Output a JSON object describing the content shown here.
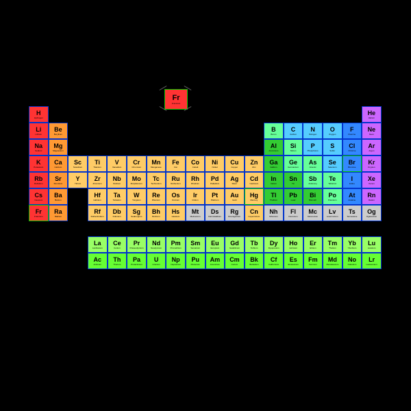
{
  "colors": {
    "alkali": "#ff3333",
    "alkaline": "#ff9933",
    "transition": "#ffcc66",
    "posttrans": "#33cc33",
    "metalloid": "#66ff99",
    "nonmetal": "#55ccff",
    "halogen": "#3388ff",
    "noble": "#cc66ff",
    "lanthanide": "#99ff66",
    "actinide": "#66ff33",
    "unknown": "#cccccc",
    "border": "#0033cc",
    "borderGreen": "#00cc00"
  },
  "legend": {
    "sym": "Fr",
    "name": "Francium"
  },
  "elements": [
    [
      {
        "s": "H",
        "n": "Hydrogen",
        "c": "alkali",
        "b": "border"
      },
      null,
      null,
      null,
      null,
      null,
      null,
      null,
      null,
      null,
      null,
      null,
      null,
      null,
      null,
      null,
      null,
      {
        "s": "He",
        "n": "Helium",
        "c": "noble",
        "b": "border"
      }
    ],
    [
      {
        "s": "Li",
        "n": "Lithium",
        "c": "alkali",
        "b": "border"
      },
      {
        "s": "Be",
        "n": "Beryllium",
        "c": "alkaline",
        "b": "border"
      },
      null,
      null,
      null,
      null,
      null,
      null,
      null,
      null,
      null,
      null,
      {
        "s": "B",
        "n": "Boron",
        "c": "metalloid",
        "b": "border"
      },
      {
        "s": "C",
        "n": "Carbon",
        "c": "nonmetal",
        "b": "border"
      },
      {
        "s": "N",
        "n": "Nitrogen",
        "c": "nonmetal",
        "b": "border"
      },
      {
        "s": "O",
        "n": "Oxygen",
        "c": "nonmetal",
        "b": "border"
      },
      {
        "s": "F",
        "n": "Fluorine",
        "c": "halogen",
        "b": "border"
      },
      {
        "s": "Ne",
        "n": "Neon",
        "c": "noble",
        "b": "border"
      }
    ],
    [
      {
        "s": "Na",
        "n": "Sodium",
        "c": "alkali",
        "b": "border"
      },
      {
        "s": "Mg",
        "n": "Magnesium",
        "c": "alkaline",
        "b": "border"
      },
      null,
      null,
      null,
      null,
      null,
      null,
      null,
      null,
      null,
      null,
      {
        "s": "Al",
        "n": "Aluminium",
        "c": "posttrans",
        "b": "border"
      },
      {
        "s": "Si",
        "n": "Silicon",
        "c": "metalloid",
        "b": "border"
      },
      {
        "s": "P",
        "n": "Phosphorus",
        "c": "nonmetal",
        "b": "border"
      },
      {
        "s": "S",
        "n": "Sulfur",
        "c": "nonmetal",
        "b": "border"
      },
      {
        "s": "Cl",
        "n": "Chlorine",
        "c": "halogen",
        "b": "border"
      },
      {
        "s": "Ar",
        "n": "Argon",
        "c": "noble",
        "b": "border"
      }
    ],
    [
      {
        "s": "K",
        "n": "Potassium",
        "c": "alkali",
        "b": "border"
      },
      {
        "s": "Ca",
        "n": "Calcium",
        "c": "alkaline",
        "b": "border"
      },
      {
        "s": "Sc",
        "n": "Scandium",
        "c": "transition",
        "b": "border"
      },
      {
        "s": "Ti",
        "n": "Titanium",
        "c": "transition",
        "b": "border"
      },
      {
        "s": "V",
        "n": "Vanadium",
        "c": "transition",
        "b": "border"
      },
      {
        "s": "Cr",
        "n": "Chromium",
        "c": "transition",
        "b": "border"
      },
      {
        "s": "Mn",
        "n": "Manganese",
        "c": "transition",
        "b": "border"
      },
      {
        "s": "Fe",
        "n": "Iron",
        "c": "transition",
        "b": "border"
      },
      {
        "s": "Co",
        "n": "Cobalt",
        "c": "transition",
        "b": "border"
      },
      {
        "s": "Ni",
        "n": "Nickel",
        "c": "transition",
        "b": "border"
      },
      {
        "s": "Cu",
        "n": "Copper",
        "c": "transition",
        "b": "border"
      },
      {
        "s": "Zn",
        "n": "Zinc",
        "c": "transition",
        "b": "border"
      },
      {
        "s": "Ga",
        "n": "Gallium",
        "c": "posttrans",
        "b": "border"
      },
      {
        "s": "Ge",
        "n": "Germanium",
        "c": "metalloid",
        "b": "border"
      },
      {
        "s": "As",
        "n": "Arsenic",
        "c": "metalloid",
        "b": "border"
      },
      {
        "s": "Se",
        "n": "Selenium",
        "c": "nonmetal",
        "b": "border"
      },
      {
        "s": "Br",
        "n": "Bromine",
        "c": "halogen",
        "b": "borderGreen"
      },
      {
        "s": "Kr",
        "n": "Krypton",
        "c": "noble",
        "b": "border"
      }
    ],
    [
      {
        "s": "Rb",
        "n": "Rubidium",
        "c": "alkali",
        "b": "border"
      },
      {
        "s": "Sr",
        "n": "Strontium",
        "c": "alkaline",
        "b": "border"
      },
      {
        "s": "Y",
        "n": "Yttrium",
        "c": "transition",
        "b": "border"
      },
      {
        "s": "Zr",
        "n": "Zirconium",
        "c": "transition",
        "b": "border"
      },
      {
        "s": "Nb",
        "n": "Niobium",
        "c": "transition",
        "b": "border"
      },
      {
        "s": "Mo",
        "n": "Molybdenum",
        "c": "transition",
        "b": "border"
      },
      {
        "s": "Tc",
        "n": "Technetium",
        "c": "transition",
        "b": "border"
      },
      {
        "s": "Ru",
        "n": "Ruthenium",
        "c": "transition",
        "b": "border"
      },
      {
        "s": "Rh",
        "n": "Rhodium",
        "c": "transition",
        "b": "border"
      },
      {
        "s": "Pd",
        "n": "Palladium",
        "c": "transition",
        "b": "border"
      },
      {
        "s": "Ag",
        "n": "Silver",
        "c": "transition",
        "b": "border"
      },
      {
        "s": "Cd",
        "n": "Cadmium",
        "c": "transition",
        "b": "border"
      },
      {
        "s": "In",
        "n": "Indium",
        "c": "posttrans",
        "b": "border"
      },
      {
        "s": "Sn",
        "n": "Tin",
        "c": "posttrans",
        "b": "border"
      },
      {
        "s": "Sb",
        "n": "Antimony",
        "c": "metalloid",
        "b": "border"
      },
      {
        "s": "Te",
        "n": "Tellurium",
        "c": "metalloid",
        "b": "border"
      },
      {
        "s": "I",
        "n": "Iodine",
        "c": "halogen",
        "b": "border"
      },
      {
        "s": "Xe",
        "n": "Xenon",
        "c": "noble",
        "b": "border"
      }
    ],
    [
      {
        "s": "Cs",
        "n": "Caesium",
        "c": "alkali",
        "b": "border"
      },
      {
        "s": "Ba",
        "n": "Barium",
        "c": "alkaline",
        "b": "border"
      },
      null,
      {
        "s": "Hf",
        "n": "Hafnium",
        "c": "transition",
        "b": "border"
      },
      {
        "s": "Ta",
        "n": "Tantalum",
        "c": "transition",
        "b": "border"
      },
      {
        "s": "W",
        "n": "Tungsten",
        "c": "transition",
        "b": "border"
      },
      {
        "s": "Re",
        "n": "Rhenium",
        "c": "transition",
        "b": "border"
      },
      {
        "s": "Os",
        "n": "Osmium",
        "c": "transition",
        "b": "border"
      },
      {
        "s": "Ir",
        "n": "Iridium",
        "c": "transition",
        "b": "border"
      },
      {
        "s": "Pt",
        "n": "Platinum",
        "c": "transition",
        "b": "border"
      },
      {
        "s": "Au",
        "n": "Gold",
        "c": "transition",
        "b": "border"
      },
      {
        "s": "Hg",
        "n": "Mercury",
        "c": "transition",
        "b": "borderGreen"
      },
      {
        "s": "Tl",
        "n": "Thallium",
        "c": "posttrans",
        "b": "border"
      },
      {
        "s": "Pb",
        "n": "Lead",
        "c": "posttrans",
        "b": "border"
      },
      {
        "s": "Bi",
        "n": "Bismuth",
        "c": "posttrans",
        "b": "border"
      },
      {
        "s": "Po",
        "n": "Polonium",
        "c": "metalloid",
        "b": "border"
      },
      {
        "s": "At",
        "n": "Astatine",
        "c": "halogen",
        "b": "border"
      },
      {
        "s": "Rn",
        "n": "Radon",
        "c": "noble",
        "b": "border"
      }
    ],
    [
      {
        "s": "Fr",
        "n": "Francium",
        "c": "alkali",
        "b": "borderGreen"
      },
      {
        "s": "Ra",
        "n": "Radium",
        "c": "alkaline",
        "b": "border"
      },
      null,
      {
        "s": "Rf",
        "n": "Rutherfordium",
        "c": "transition",
        "b": "border"
      },
      {
        "s": "Db",
        "n": "Dubnium",
        "c": "transition",
        "b": "border"
      },
      {
        "s": "Sg",
        "n": "Seaborgium",
        "c": "transition",
        "b": "border"
      },
      {
        "s": "Bh",
        "n": "Bohrium",
        "c": "transition",
        "b": "border"
      },
      {
        "s": "Hs",
        "n": "Hassium",
        "c": "transition",
        "b": "border"
      },
      {
        "s": "Mt",
        "n": "Meitnerium",
        "c": "unknown",
        "b": "border"
      },
      {
        "s": "Ds",
        "n": "Darmstadtium",
        "c": "unknown",
        "b": "border"
      },
      {
        "s": "Rg",
        "n": "Roentgenium",
        "c": "unknown",
        "b": "border"
      },
      {
        "s": "Cn",
        "n": "Copernicium",
        "c": "transition",
        "b": "border"
      },
      {
        "s": "Nh",
        "n": "Nihonium",
        "c": "unknown",
        "b": "border"
      },
      {
        "s": "Fl",
        "n": "Flerovium",
        "c": "unknown",
        "b": "border"
      },
      {
        "s": "Mc",
        "n": "Moscovium",
        "c": "unknown",
        "b": "border"
      },
      {
        "s": "Lv",
        "n": "Livermorium",
        "c": "unknown",
        "b": "border"
      },
      {
        "s": "Ts",
        "n": "Tennessine",
        "c": "unknown",
        "b": "border"
      },
      {
        "s": "Og",
        "n": "Oganesson",
        "c": "unknown",
        "b": "border"
      }
    ]
  ],
  "lanthanides": [
    [
      {
        "s": "La",
        "n": "Lanthanum",
        "c": "lanthanide",
        "b": "border"
      },
      {
        "s": "Ce",
        "n": "Cerium",
        "c": "lanthanide",
        "b": "border"
      },
      {
        "s": "Pr",
        "n": "Praseodymium",
        "c": "lanthanide",
        "b": "border"
      },
      {
        "s": "Nd",
        "n": "Neodymium",
        "c": "lanthanide",
        "b": "border"
      },
      {
        "s": "Pm",
        "n": "Promethium",
        "c": "lanthanide",
        "b": "border"
      },
      {
        "s": "Sm",
        "n": "Samarium",
        "c": "lanthanide",
        "b": "border"
      },
      {
        "s": "Eu",
        "n": "Europium",
        "c": "lanthanide",
        "b": "border"
      },
      {
        "s": "Gd",
        "n": "Gadolinium",
        "c": "lanthanide",
        "b": "border"
      },
      {
        "s": "Tb",
        "n": "Terbium",
        "c": "lanthanide",
        "b": "border"
      },
      {
        "s": "Dy",
        "n": "Dysprosium",
        "c": "lanthanide",
        "b": "border"
      },
      {
        "s": "Ho",
        "n": "Holmium",
        "c": "lanthanide",
        "b": "border"
      },
      {
        "s": "Er",
        "n": "Erbium",
        "c": "lanthanide",
        "b": "border"
      },
      {
        "s": "Tm",
        "n": "Thulium",
        "c": "lanthanide",
        "b": "border"
      },
      {
        "s": "Yb",
        "n": "Ytterbium",
        "c": "lanthanide",
        "b": "border"
      },
      {
        "s": "Lu",
        "n": "Lutetium",
        "c": "lanthanide",
        "b": "border"
      }
    ],
    [
      {
        "s": "Ac",
        "n": "Actinium",
        "c": "actinide",
        "b": "border"
      },
      {
        "s": "Th",
        "n": "Thorium",
        "c": "actinide",
        "b": "border"
      },
      {
        "s": "Pa",
        "n": "Protactinium",
        "c": "actinide",
        "b": "border"
      },
      {
        "s": "U",
        "n": "Uranium",
        "c": "actinide",
        "b": "border"
      },
      {
        "s": "Np",
        "n": "Neptunium",
        "c": "actinide",
        "b": "border"
      },
      {
        "s": "Pu",
        "n": "Plutonium",
        "c": "actinide",
        "b": "border"
      },
      {
        "s": "Am",
        "n": "Americium",
        "c": "actinide",
        "b": "border"
      },
      {
        "s": "Cm",
        "n": "Curium",
        "c": "actinide",
        "b": "border"
      },
      {
        "s": "Bk",
        "n": "Berkelium",
        "c": "actinide",
        "b": "border"
      },
      {
        "s": "Cf",
        "n": "Californium",
        "c": "actinide",
        "b": "border"
      },
      {
        "s": "Es",
        "n": "Einsteinium",
        "c": "actinide",
        "b": "border"
      },
      {
        "s": "Fm",
        "n": "Fermium",
        "c": "actinide",
        "b": "border"
      },
      {
        "s": "Md",
        "n": "Mendelevium",
        "c": "actinide",
        "b": "border"
      },
      {
        "s": "No",
        "n": "Nobelium",
        "c": "actinide",
        "b": "border"
      },
      {
        "s": "Lr",
        "n": "Lawrencium",
        "c": "actinide",
        "b": "border"
      }
    ]
  ]
}
